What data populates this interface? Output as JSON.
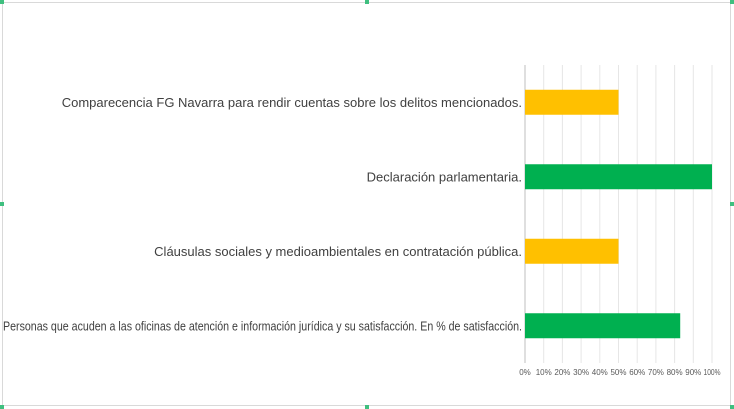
{
  "chart_data": {
    "type": "bar",
    "orientation": "horizontal",
    "categories": [
      "Comparecencia FG Navarra para rendir cuentas sobre los delitos mencionados.",
      "Declaración parlamentaria.",
      "Cláusulas sociales y medioambientales en contratación pública.",
      "Personas que acuden a las oficinas de atención e información jurídica y su satisfacción. En % de satisfacción."
    ],
    "values": [
      50,
      100,
      50,
      83
    ],
    "bar_colors": [
      "#FFC000",
      "#00B050",
      "#FFC000",
      "#00B050"
    ],
    "xlim": [
      0,
      100
    ],
    "x_ticks": [
      "0%",
      "10%",
      "20%",
      "30%",
      "40%",
      "50%",
      "60%",
      "70%",
      "80%",
      "90%",
      "100%"
    ],
    "grid": true,
    "legend": "none",
    "title": "",
    "xlabel": "",
    "ylabel": ""
  }
}
